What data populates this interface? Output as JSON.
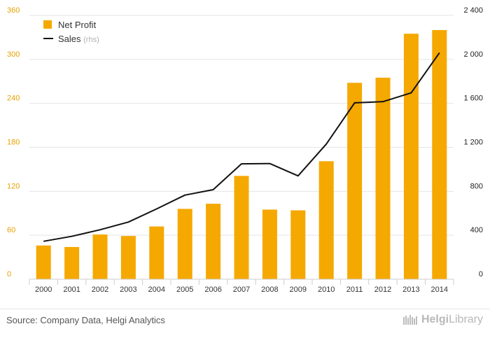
{
  "chart_data": {
    "type": "bar",
    "categories": [
      "2000",
      "2001",
      "2002",
      "2003",
      "2004",
      "2005",
      "2006",
      "2007",
      "2008",
      "2009",
      "2010",
      "2011",
      "2012",
      "2013",
      "2014"
    ],
    "series": [
      {
        "name": "Net Profit",
        "type": "bar",
        "axis": "left",
        "color": "#f5a800",
        "values": [
          46,
          44,
          61,
          59,
          72,
          96,
          103,
          141,
          95,
          94,
          161,
          268,
          275,
          335,
          340
        ]
      },
      {
        "name": "Sales",
        "type": "line",
        "axis": "right",
        "color": "#111111",
        "values": [
          345,
          390,
          450,
          520,
          640,
          765,
          815,
          1050,
          1052,
          940,
          1230,
          1605,
          1615,
          1695,
          2060
        ]
      }
    ],
    "yleft": {
      "ticks": [
        0,
        60,
        120,
        180,
        240,
        300,
        360
      ],
      "ylim": [
        0,
        360
      ],
      "tick_color": "#e8a200"
    },
    "yright": {
      "ticks": [
        0,
        400,
        800,
        1200,
        1600,
        2000,
        2400
      ],
      "tick_labels": [
        "0",
        "400",
        "800",
        "1 200",
        "1 600",
        "2 000",
        "2 400"
      ],
      "ylim": [
        0,
        2400
      ]
    },
    "grid": true,
    "legend": {
      "position": "top-left",
      "entries": [
        {
          "label": "Net Profit",
          "suffix": ""
        },
        {
          "label": "Sales",
          "suffix": "(rhs)"
        }
      ]
    }
  },
  "footer": {
    "source": "Source: Company Data, Helgi Analytics",
    "logo_part1": "Helgi",
    "logo_part2": "Library"
  }
}
